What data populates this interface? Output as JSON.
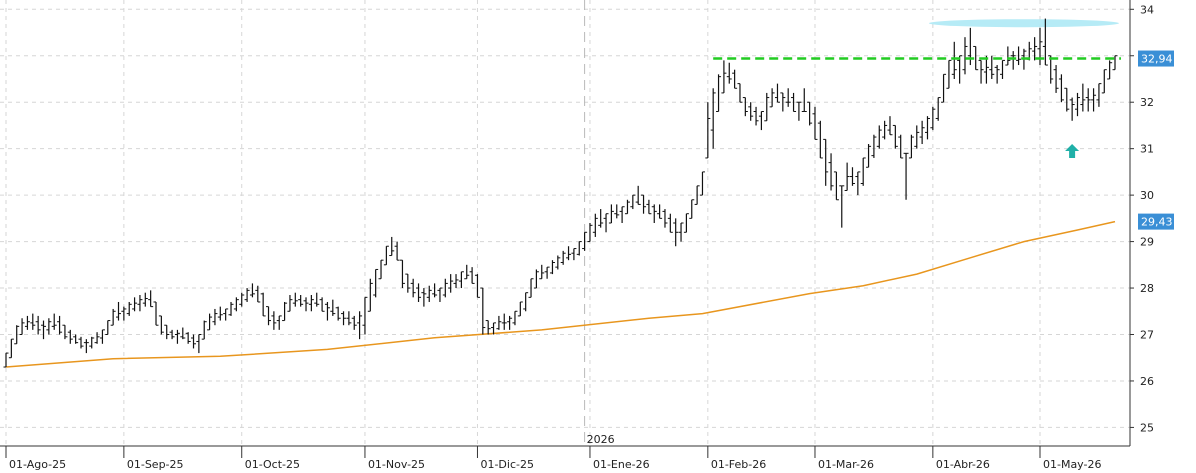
{
  "chart_data": {
    "type": "ohlc",
    "title": "",
    "xlabel": "",
    "ylabel": "",
    "ylim": [
      24.6,
      34.2
    ],
    "y_ticks": [
      "34",
      "33",
      "32",
      "31",
      "30",
      "29",
      "28",
      "27",
      "26",
      "25"
    ],
    "x_ticks": [
      {
        "label": "01-Ago-25",
        "bar": 0
      },
      {
        "label": "01-Sep-25",
        "bar": 22
      },
      {
        "label": "01-Oct-25",
        "bar": 44
      },
      {
        "label": "01-Nov-25",
        "bar": 67
      },
      {
        "label": "01-Dic-25",
        "bar": 88
      },
      {
        "label": "01-Ene-26",
        "bar": 109
      },
      {
        "label": "01-Feb-26",
        "bar": 131
      },
      {
        "label": "01-Mar-26",
        "bar": 151
      },
      {
        "label": "01-Abr-26",
        "bar": 173
      },
      {
        "label": "01-May-26",
        "bar": 193
      }
    ],
    "year_marker": {
      "label": "2026",
      "bar": 108
    },
    "price_tags": [
      {
        "label": "32,94",
        "value": 32.94,
        "color": "#3a8fd6"
      },
      {
        "label": "29,43",
        "value": 29.43,
        "color": "#3a8fd6"
      }
    ],
    "horizontal_line": {
      "value": 32.94,
      "color": "#22cc22",
      "start_bar": 132,
      "end_bar": 207
    },
    "highlight_zone": {
      "value": 33.7,
      "color": "#aee9f5",
      "start_bar": 173,
      "end_bar": 207
    },
    "arrow_marker": {
      "bar": 199,
      "value": 30.95,
      "direction": "up",
      "color": "#20b0a8"
    },
    "moving_average": {
      "color": "#e8961e",
      "points": [
        [
          0,
          26.3
        ],
        [
          20,
          26.48
        ],
        [
          40,
          26.53
        ],
        [
          60,
          26.68
        ],
        [
          80,
          26.93
        ],
        [
          100,
          27.1
        ],
        [
          120,
          27.35
        ],
        [
          130,
          27.45
        ],
        [
          150,
          27.88
        ],
        [
          160,
          28.05
        ],
        [
          170,
          28.3
        ],
        [
          180,
          28.65
        ],
        [
          190,
          29.0
        ],
        [
          200,
          29.25
        ],
        [
          207,
          29.43
        ]
      ]
    },
    "series": [
      {
        "name": "",
        "color": "#111111",
        "bars": [
          [
            0,
            26.3,
            26.6
          ],
          [
            1,
            26.5,
            26.9
          ],
          [
            2,
            26.8,
            27.2
          ],
          [
            3,
            27.0,
            27.35
          ],
          [
            4,
            27.1,
            27.4
          ],
          [
            5,
            27.1,
            27.45
          ],
          [
            6,
            27.0,
            27.4
          ],
          [
            7,
            26.9,
            27.3
          ],
          [
            8,
            27.0,
            27.35
          ],
          [
            9,
            27.1,
            27.45
          ],
          [
            10,
            27.0,
            27.4
          ],
          [
            11,
            26.9,
            27.2
          ],
          [
            12,
            26.8,
            27.1
          ],
          [
            13,
            26.8,
            27.0
          ],
          [
            14,
            26.7,
            26.95
          ],
          [
            15,
            26.6,
            26.9
          ],
          [
            16,
            26.7,
            26.95
          ],
          [
            17,
            26.8,
            27.05
          ],
          [
            18,
            26.8,
            27.1
          ],
          [
            19,
            27.0,
            27.3
          ],
          [
            20,
            27.2,
            27.55
          ],
          [
            21,
            27.3,
            27.7
          ],
          [
            22,
            27.3,
            27.6
          ],
          [
            23,
            27.4,
            27.7
          ],
          [
            24,
            27.5,
            27.8
          ],
          [
            25,
            27.5,
            27.85
          ],
          [
            26,
            27.6,
            27.9
          ],
          [
            27,
            27.6,
            27.95
          ],
          [
            28,
            27.2,
            27.7
          ],
          [
            29,
            27.0,
            27.4
          ],
          [
            30,
            26.9,
            27.2
          ],
          [
            31,
            26.9,
            27.1
          ],
          [
            32,
            26.8,
            27.1
          ],
          [
            33,
            26.9,
            27.15
          ],
          [
            34,
            26.8,
            27.05
          ],
          [
            35,
            26.7,
            27.0
          ],
          [
            36,
            26.6,
            27.0
          ],
          [
            37,
            26.9,
            27.3
          ],
          [
            38,
            27.1,
            27.45
          ],
          [
            39,
            27.2,
            27.55
          ],
          [
            40,
            27.3,
            27.6
          ],
          [
            41,
            27.3,
            27.55
          ],
          [
            42,
            27.4,
            27.7
          ],
          [
            43,
            27.5,
            27.8
          ],
          [
            44,
            27.6,
            27.9
          ],
          [
            45,
            27.7,
            28.0
          ],
          [
            46,
            27.8,
            28.1
          ],
          [
            47,
            27.7,
            28.05
          ],
          [
            48,
            27.4,
            27.9
          ],
          [
            49,
            27.2,
            27.6
          ],
          [
            50,
            27.1,
            27.5
          ],
          [
            51,
            27.1,
            27.4
          ],
          [
            52,
            27.3,
            27.7
          ],
          [
            53,
            27.5,
            27.85
          ],
          [
            54,
            27.6,
            27.9
          ],
          [
            55,
            27.6,
            27.85
          ],
          [
            56,
            27.5,
            27.8
          ],
          [
            57,
            27.5,
            27.85
          ],
          [
            58,
            27.6,
            27.9
          ],
          [
            59,
            27.5,
            27.8
          ],
          [
            60,
            27.3,
            27.7
          ],
          [
            61,
            27.4,
            27.75
          ],
          [
            62,
            27.3,
            27.6
          ],
          [
            63,
            27.2,
            27.5
          ],
          [
            64,
            27.2,
            27.5
          ],
          [
            65,
            27.1,
            27.4
          ],
          [
            66,
            26.9,
            27.5
          ],
          [
            67,
            27.0,
            27.8
          ],
          [
            68,
            27.5,
            28.2
          ],
          [
            69,
            27.8,
            28.4
          ],
          [
            70,
            28.2,
            28.6
          ],
          [
            71,
            28.5,
            28.9
          ],
          [
            72,
            28.7,
            29.1
          ],
          [
            73,
            28.6,
            29.0
          ],
          [
            74,
            28.0,
            28.6
          ],
          [
            75,
            27.9,
            28.3
          ],
          [
            76,
            27.8,
            28.2
          ],
          [
            77,
            27.7,
            28.1
          ],
          [
            78,
            27.6,
            28.0
          ],
          [
            79,
            27.7,
            28.05
          ],
          [
            80,
            27.8,
            28.1
          ],
          [
            81,
            27.7,
            28.0
          ],
          [
            82,
            27.8,
            28.2
          ],
          [
            83,
            27.9,
            28.3
          ],
          [
            84,
            28.0,
            28.3
          ],
          [
            85,
            28.0,
            28.35
          ],
          [
            86,
            28.2,
            28.5
          ],
          [
            87,
            28.1,
            28.45
          ],
          [
            88,
            27.8,
            28.3
          ],
          [
            89,
            27.0,
            28.0
          ],
          [
            90,
            27.0,
            27.3
          ],
          [
            91,
            27.0,
            27.25
          ],
          [
            92,
            27.1,
            27.4
          ],
          [
            93,
            27.1,
            27.45
          ],
          [
            94,
            27.1,
            27.4
          ],
          [
            95,
            27.2,
            27.5
          ],
          [
            96,
            27.4,
            27.7
          ],
          [
            97,
            27.5,
            27.9
          ],
          [
            98,
            27.8,
            28.2
          ],
          [
            99,
            28.0,
            28.4
          ],
          [
            100,
            28.2,
            28.5
          ],
          [
            101,
            28.2,
            28.45
          ],
          [
            102,
            28.3,
            28.6
          ],
          [
            103,
            28.4,
            28.7
          ],
          [
            104,
            28.5,
            28.8
          ],
          [
            105,
            28.6,
            28.9
          ],
          [
            106,
            28.6,
            28.85
          ],
          [
            107,
            28.7,
            29.0
          ],
          [
            108,
            28.8,
            29.2
          ],
          [
            109,
            29.0,
            29.4
          ],
          [
            110,
            29.1,
            29.6
          ],
          [
            111,
            29.3,
            29.7
          ],
          [
            112,
            29.2,
            29.6
          ],
          [
            113,
            29.4,
            29.8
          ],
          [
            114,
            29.5,
            29.8
          ],
          [
            115,
            29.4,
            29.75
          ],
          [
            116,
            29.6,
            29.9
          ],
          [
            117,
            29.7,
            30.0
          ],
          [
            118,
            29.8,
            30.2
          ],
          [
            119,
            29.6,
            30.0
          ],
          [
            120,
            29.6,
            29.9
          ],
          [
            121,
            29.4,
            29.8
          ],
          [
            122,
            29.5,
            29.8
          ],
          [
            123,
            29.3,
            29.7
          ],
          [
            124,
            29.2,
            29.6
          ],
          [
            125,
            28.9,
            29.5
          ],
          [
            126,
            29.0,
            29.4
          ],
          [
            127,
            29.2,
            29.6
          ],
          [
            128,
            29.5,
            29.9
          ],
          [
            129,
            29.8,
            30.2
          ],
          [
            130,
            30.0,
            30.5
          ],
          [
            131,
            30.8,
            32.0
          ],
          [
            132,
            31.0,
            32.3
          ],
          [
            133,
            31.8,
            32.6
          ],
          [
            134,
            32.2,
            32.9
          ],
          [
            135,
            32.4,
            32.85
          ],
          [
            136,
            32.3,
            32.7
          ],
          [
            137,
            32.0,
            32.4
          ],
          [
            138,
            31.7,
            32.1
          ],
          [
            139,
            31.6,
            32.0
          ],
          [
            140,
            31.5,
            31.9
          ],
          [
            141,
            31.4,
            31.8
          ],
          [
            142,
            31.6,
            32.2
          ],
          [
            143,
            31.9,
            32.3
          ],
          [
            144,
            32.0,
            32.4
          ],
          [
            145,
            31.8,
            32.2
          ],
          [
            146,
            31.9,
            32.3
          ],
          [
            147,
            31.8,
            32.2
          ],
          [
            148,
            31.6,
            32.0
          ],
          [
            149,
            31.8,
            32.3
          ],
          [
            150,
            31.5,
            32.0
          ],
          [
            151,
            31.2,
            31.9
          ],
          [
            152,
            30.8,
            31.6
          ],
          [
            153,
            30.2,
            31.2
          ],
          [
            154,
            30.1,
            30.9
          ],
          [
            155,
            29.9,
            30.5
          ],
          [
            156,
            29.3,
            30.2
          ],
          [
            157,
            30.1,
            30.7
          ],
          [
            158,
            30.2,
            30.6
          ],
          [
            159,
            30.0,
            30.5
          ],
          [
            160,
            30.2,
            30.8
          ],
          [
            161,
            30.6,
            31.1
          ],
          [
            162,
            30.8,
            31.3
          ],
          [
            163,
            31.0,
            31.5
          ],
          [
            164,
            31.2,
            31.6
          ],
          [
            165,
            31.3,
            31.7
          ],
          [
            166,
            31.0,
            31.5
          ],
          [
            167,
            30.8,
            31.3
          ],
          [
            168,
            29.9,
            30.9
          ],
          [
            169,
            30.8,
            31.3
          ],
          [
            170,
            31.0,
            31.5
          ],
          [
            171,
            31.1,
            31.6
          ],
          [
            172,
            31.2,
            31.7
          ],
          [
            173,
            31.4,
            31.9
          ],
          [
            174,
            31.6,
            32.1
          ],
          [
            175,
            32.0,
            32.6
          ],
          [
            176,
            32.3,
            32.9
          ],
          [
            177,
            32.5,
            33.3
          ],
          [
            178,
            32.4,
            33.0
          ],
          [
            179,
            32.6,
            33.4
          ],
          [
            180,
            32.8,
            33.6
          ],
          [
            181,
            32.7,
            33.2
          ],
          [
            182,
            32.4,
            32.9
          ],
          [
            183,
            32.4,
            33.0
          ],
          [
            184,
            32.5,
            33.0
          ],
          [
            185,
            32.4,
            32.8
          ],
          [
            186,
            32.5,
            32.9
          ],
          [
            187,
            32.8,
            33.2
          ],
          [
            188,
            32.7,
            33.1
          ],
          [
            189,
            32.8,
            33.2
          ],
          [
            190,
            32.7,
            33.15
          ],
          [
            191,
            32.9,
            33.3
          ],
          [
            192,
            32.9,
            33.4
          ],
          [
            193,
            32.8,
            33.6
          ],
          [
            194,
            32.8,
            33.8
          ],
          [
            195,
            32.4,
            33.0
          ],
          [
            196,
            32.2,
            32.8
          ],
          [
            197,
            32.0,
            32.6
          ],
          [
            198,
            31.8,
            32.3
          ],
          [
            199,
            31.6,
            32.1
          ],
          [
            200,
            31.7,
            32.2
          ],
          [
            201,
            31.8,
            32.4
          ],
          [
            202,
            31.8,
            32.3
          ],
          [
            203,
            31.8,
            32.3
          ],
          [
            204,
            31.9,
            32.4
          ],
          [
            205,
            32.2,
            32.7
          ],
          [
            206,
            32.5,
            32.9
          ],
          [
            207,
            32.7,
            33.0
          ]
        ]
      }
    ]
  }
}
